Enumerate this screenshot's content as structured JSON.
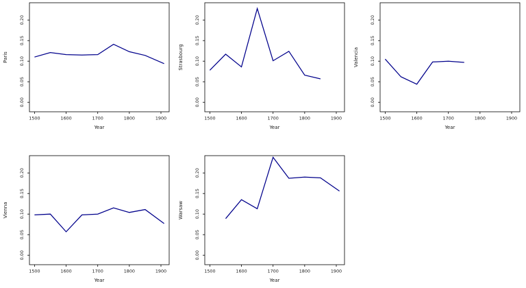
{
  "page": {
    "background": "#ffffff",
    "axis_color": "#000000",
    "text_color": "#1a1a1a"
  },
  "chart_data": [
    {
      "id": "paris",
      "type": "line",
      "title": "",
      "ylabel": "Paris",
      "xlabel": "Year",
      "legend": "none",
      "grid": false,
      "line_color": "#00008B",
      "x_ticks": [
        1500,
        1600,
        1700,
        1800,
        1900
      ],
      "y_ticks": [
        0.0,
        0.05,
        0.1,
        0.15,
        0.2
      ],
      "xlim": [
        1484,
        1926
      ],
      "ylim": [
        -0.023,
        0.242
      ],
      "x": [
        1500,
        1550,
        1600,
        1650,
        1700,
        1750,
        1800,
        1850,
        1910
      ],
      "y": [
        0.11,
        0.121,
        0.116,
        0.115,
        0.116,
        0.141,
        0.123,
        0.114,
        0.094
      ]
    },
    {
      "id": "strasbourg",
      "type": "line",
      "title": "",
      "ylabel": "Strasbourg",
      "xlabel": "Year",
      "legend": "none",
      "grid": false,
      "line_color": "#00008B",
      "x_ticks": [
        1500,
        1600,
        1700,
        1800,
        1900
      ],
      "y_ticks": [
        0.0,
        0.05,
        0.1,
        0.15,
        0.2
      ],
      "xlim": [
        1484,
        1926
      ],
      "ylim": [
        -0.023,
        0.242
      ],
      "x": [
        1500,
        1550,
        1600,
        1650,
        1700,
        1750,
        1800,
        1850
      ],
      "y": [
        0.078,
        0.117,
        0.086,
        0.228,
        0.101,
        0.124,
        0.066,
        0.057
      ]
    },
    {
      "id": "valencia",
      "type": "line",
      "title": "",
      "ylabel": "Valencia",
      "xlabel": "Year",
      "legend": "none",
      "grid": false,
      "line_color": "#00008B",
      "x_ticks": [
        1500,
        1600,
        1700,
        1800,
        1900
      ],
      "y_ticks": [
        0.0,
        0.05,
        0.1,
        0.15,
        0.2
      ],
      "xlim": [
        1484,
        1926
      ],
      "ylim": [
        -0.023,
        0.242
      ],
      "x": [
        1500,
        1550,
        1600,
        1650,
        1700,
        1750
      ],
      "y": [
        0.105,
        0.062,
        0.044,
        0.098,
        0.1,
        0.097
      ]
    },
    {
      "id": "vienna",
      "type": "line",
      "title": "",
      "ylabel": "Vienna",
      "xlabel": "Year",
      "legend": "none",
      "grid": false,
      "line_color": "#00008B",
      "x_ticks": [
        1500,
        1600,
        1700,
        1800,
        1900
      ],
      "y_ticks": [
        0.0,
        0.05,
        0.1,
        0.15,
        0.2
      ],
      "xlim": [
        1484,
        1926
      ],
      "ylim": [
        -0.023,
        0.242
      ],
      "x": [
        1500,
        1550,
        1600,
        1650,
        1700,
        1750,
        1800,
        1850,
        1910
      ],
      "y": [
        0.098,
        0.1,
        0.057,
        0.098,
        0.1,
        0.115,
        0.104,
        0.111,
        0.077
      ]
    },
    {
      "id": "warsaw",
      "type": "line",
      "title": "",
      "ylabel": "Warsaw",
      "xlabel": "Year",
      "legend": "none",
      "grid": false,
      "line_color": "#00008B",
      "x_ticks": [
        1500,
        1600,
        1700,
        1800,
        1900
      ],
      "y_ticks": [
        0.0,
        0.05,
        0.1,
        0.15,
        0.2
      ],
      "xlim": [
        1484,
        1926
      ],
      "ylim": [
        -0.023,
        0.242
      ],
      "x": [
        1550,
        1600,
        1650,
        1700,
        1750,
        1800,
        1850,
        1910
      ],
      "y": [
        0.089,
        0.135,
        0.113,
        0.238,
        0.187,
        0.19,
        0.188,
        0.156
      ]
    }
  ]
}
